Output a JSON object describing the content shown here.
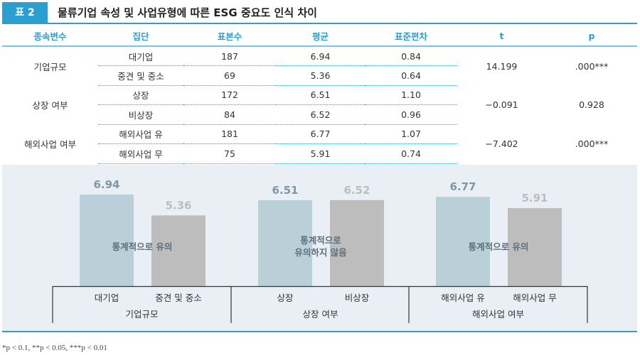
{
  "header": {
    "tag": "표 2",
    "title": "물류기업 속성 및 사업유형에 따른 ESG 중요도 인식 차이"
  },
  "table": {
    "columns": [
      "종속변수",
      "집단",
      "표본수",
      "평균",
      "표준편차",
      "t",
      "p"
    ],
    "groups": [
      {
        "variable": "기업규모",
        "t": "14.199",
        "p": ".000***",
        "rows": [
          [
            "대기업",
            "187",
            "6.94",
            "0.84"
          ],
          [
            "중견 및 중소",
            "69",
            "5.36",
            "0.64"
          ]
        ]
      },
      {
        "variable": "상장 여부",
        "t": "−0.091",
        "p": "0.928",
        "rows": [
          [
            "상장",
            "172",
            "6.51",
            "1.10"
          ],
          [
            "비상장",
            "84",
            "6.52",
            "0.96"
          ]
        ]
      },
      {
        "variable": "해외사업 여부",
        "t": "−7.402",
        "p": ".000***",
        "rows": [
          [
            "해외사업 유",
            "181",
            "6.77",
            "1.07"
          ],
          [
            "해외사업 무",
            "75",
            "5.91",
            "0.74"
          ]
        ]
      }
    ]
  },
  "chart_data": {
    "type": "bar",
    "groups": [
      {
        "name": "기업규모",
        "categories": [
          "대기업",
          "중견 및 중소"
        ],
        "values": [
          6.94,
          5.36
        ],
        "annotation": "통계적으로 유의"
      },
      {
        "name": "상장 여부",
        "categories": [
          "상장",
          "비상장"
        ],
        "values": [
          6.51,
          6.52
        ],
        "annotation": "통계적으로\n유의하지 않음"
      },
      {
        "name": "해외사업 여부",
        "categories": [
          "해외사업 유",
          "해외사업 무"
        ],
        "values": [
          6.77,
          5.91
        ],
        "annotation": "통계적으로 유의"
      }
    ],
    "ylim": [
      0,
      7
    ],
    "colors": {
      "first": "#b9d0d8",
      "second": "#bdbdbd",
      "first_label": "#7f97a6",
      "second_label": "#bdbdbd",
      "annotation": "#5d6f7a"
    }
  },
  "footnote": "*p < 0.1, **p < 0.05, ***p < 0.01"
}
